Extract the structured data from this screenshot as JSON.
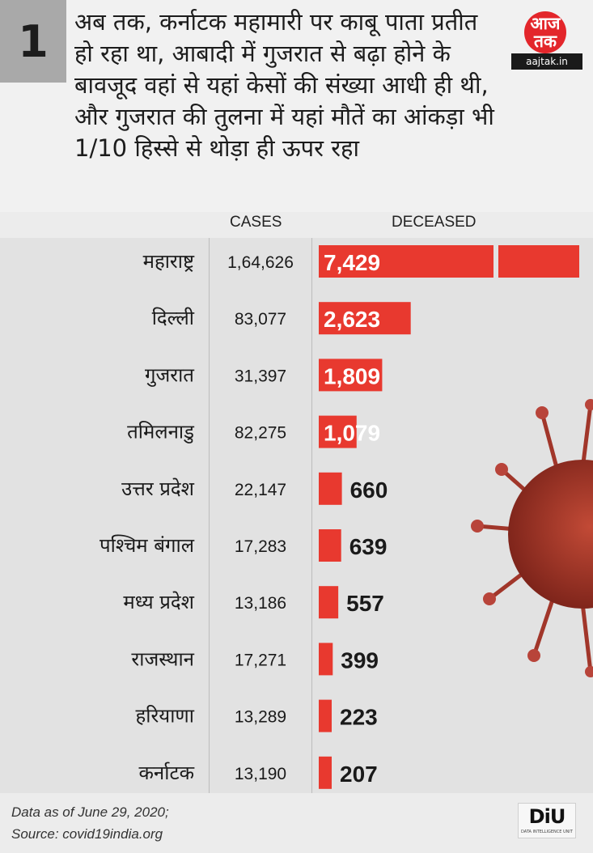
{
  "header": {
    "number": "1",
    "headline": "अब तक, कर्नाटक महामारी पर काबू पाता प्रतीत हो रहा था, आबादी में गुजरात से बढ़ा होने के बावजूद वहां से यहां केसों की संख्या आधी ही थी, और गुजरात की तुलना में यहां मौतें का आंकड़ा भी 1/10 हिस्से से थोड़ा ही ऊपर रहा",
    "logo_mark": "आज तक",
    "logo_site": "aajtak.in"
  },
  "chart_data": {
    "type": "bar",
    "title": "",
    "columns": [
      "CASES",
      "DECEASED"
    ],
    "categories": [
      "महाराष्ट्र",
      "दिल्ली",
      "गुजरात",
      "तमिलनाडु",
      "उत्तर प्रदेश",
      "पश्चिम बंगाल",
      "मध्य प्रदेश",
      "राजस्थान",
      "हरियाणा",
      "कर्नाटक"
    ],
    "cases": [
      "1,64,626",
      "83,077",
      "31,397",
      "82,275",
      "22,147",
      "17,283",
      "13,186",
      "17,271",
      "13,289",
      "13,190"
    ],
    "deceased_labels": [
      "7,429",
      "2,623",
      "1,809",
      "1,079",
      "660",
      "639",
      "557",
      "399",
      "223",
      "207"
    ],
    "values": [
      7429,
      2623,
      1809,
      1079,
      660,
      639,
      557,
      399,
      223,
      207
    ],
    "bar_color": "#e8392f"
  },
  "footer": {
    "note": "Data as of June 29, 2020;",
    "source": "Source: covid19india.org"
  },
  "badge": {
    "label": "DiU",
    "sub": "DATA INTELLIGENCE UNIT"
  }
}
